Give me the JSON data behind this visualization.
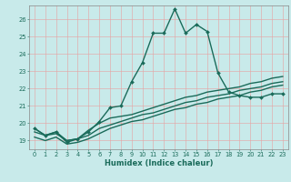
{
  "title": "",
  "xlabel": "Humidex (Indice chaleur)",
  "bg_color": "#c8eaea",
  "grid_color_v": "#e8a0a0",
  "grid_color_h": "#e8a0a0",
  "line_color": "#1a6b5a",
  "xlim": [
    -0.5,
    23.5
  ],
  "ylim": [
    18.5,
    26.8
  ],
  "xticks": [
    0,
    1,
    2,
    3,
    4,
    5,
    6,
    7,
    8,
    9,
    10,
    11,
    12,
    13,
    14,
    15,
    16,
    17,
    18,
    19,
    20,
    21,
    22,
    23
  ],
  "yticks": [
    19,
    20,
    21,
    22,
    23,
    24,
    25,
    26
  ],
  "series": [
    [
      19.7,
      19.3,
      19.5,
      18.9,
      19.1,
      19.5,
      20.1,
      20.9,
      21.0,
      22.4,
      23.5,
      25.2,
      25.2,
      26.6,
      25.2,
      25.7,
      25.3,
      22.9,
      21.8,
      21.6,
      21.5,
      21.5,
      21.7,
      21.7
    ],
    [
      19.7,
      19.3,
      19.5,
      19.0,
      19.1,
      19.6,
      20.0,
      20.3,
      20.4,
      20.5,
      20.7,
      20.9,
      21.1,
      21.3,
      21.5,
      21.6,
      21.8,
      21.9,
      22.0,
      22.1,
      22.3,
      22.4,
      22.6,
      22.7
    ],
    [
      19.5,
      19.3,
      19.4,
      19.0,
      19.1,
      19.3,
      19.7,
      19.9,
      20.1,
      20.3,
      20.5,
      20.6,
      20.8,
      21.0,
      21.2,
      21.3,
      21.5,
      21.6,
      21.7,
      21.9,
      22.0,
      22.1,
      22.3,
      22.4
    ],
    [
      19.2,
      19.0,
      19.2,
      18.8,
      18.9,
      19.1,
      19.4,
      19.7,
      19.9,
      20.1,
      20.2,
      20.4,
      20.6,
      20.8,
      20.9,
      21.1,
      21.2,
      21.4,
      21.5,
      21.6,
      21.8,
      21.9,
      22.1,
      22.2
    ]
  ],
  "markers": [
    true,
    false,
    false,
    false
  ],
  "linewidths": [
    1.0,
    1.0,
    1.0,
    1.0
  ],
  "markersize": 2.0,
  "xlabel_fontsize": 6.0,
  "tick_fontsize": 4.8
}
